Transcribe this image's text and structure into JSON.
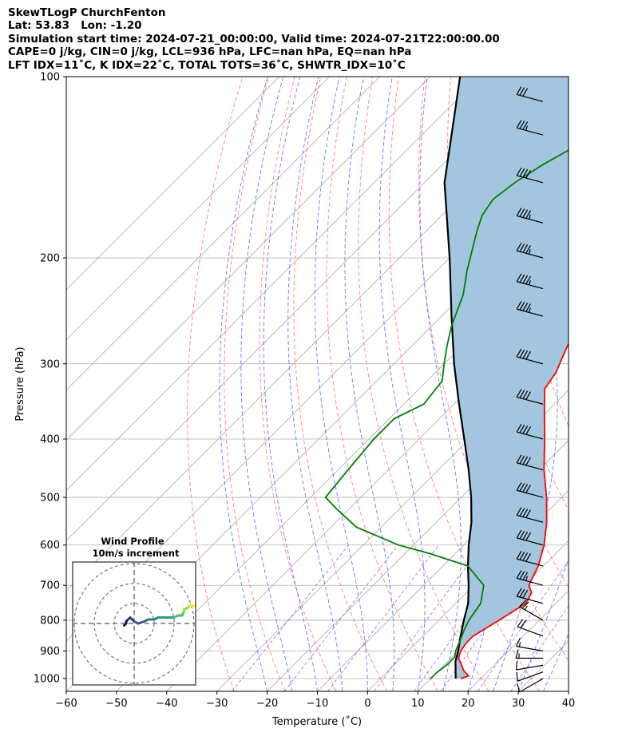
{
  "header": {
    "line1": "SkewTLogP ChurchFenton",
    "line2": "Lat: 53.83   Lon: -1.20",
    "line3": "Simulation start time: 2024-07-21_00:00:00, Valid time: 2024-07-21T22:00:00.00",
    "line4": "CAPE=0 j/kg, CIN=0 j/kg, LCL=936 hPa, LFC=nan hPa, EQ=nan hPa",
    "line5": "LFT IDX=11˚C, K IDX=22˚C, TOTAL TOTS=36˚C, SHWTR_IDX=10˚C"
  },
  "chart_data": {
    "type": "skewt-logp",
    "xlabel": "Temperature (˚C)",
    "ylabel": "Pressure (hPa)",
    "xlim": [
      -60,
      40
    ],
    "ylim": [
      1050,
      100
    ],
    "yscale": "log",
    "x_ticks": [
      "−60",
      "−50",
      "−40",
      "−30",
      "−20",
      "−10",
      "0",
      "10",
      "20",
      "30",
      "40"
    ],
    "x_tick_values": [
      -60,
      -50,
      -40,
      -30,
      -20,
      -10,
      0,
      10,
      20,
      30,
      40
    ],
    "y_ticks": [
      "100",
      "200",
      "300",
      "400",
      "500",
      "600",
      "700",
      "800",
      "900",
      "1000"
    ],
    "y_tick_values": [
      100,
      200,
      300,
      400,
      500,
      600,
      700,
      800,
      900,
      1000
    ],
    "colors": {
      "temperature": "#ff0000",
      "dewpoint": "#008000",
      "parcel": "#000000",
      "fill": "#a3c5df",
      "dry_adiabat": "#ff6b6b",
      "moist_adiabat": "#4455ff",
      "mixing_ratio": "#9944cc",
      "isotherm": "#aaaaaa",
      "grid": "#b0b0b0"
    },
    "temperature": {
      "pressure": [
        1000,
        990,
        970,
        950,
        925,
        900,
        870,
        850,
        800,
        750,
        720,
        700,
        650,
        600,
        550,
        500,
        450,
        400,
        350,
        330,
        310,
        300,
        280,
        250,
        230,
        210,
        190,
        180,
        160,
        150,
        140,
        130,
        120,
        110,
        100
      ],
      "values": [
        16,
        17,
        15,
        13.5,
        11.5,
        10.5,
        10,
        10,
        12,
        14,
        13,
        11,
        9,
        6,
        2,
        -3,
        -9,
        -15,
        -22,
        -25,
        -26,
        -27,
        -29,
        -32,
        -35,
        -38,
        -41,
        -43,
        -46,
        -48,
        -50,
        -52,
        -54,
        -56,
        -58
      ]
    },
    "dewpoint": {
      "pressure": [
        1000,
        980,
        950,
        920,
        900,
        870,
        830,
        800,
        750,
        700,
        650,
        620,
        600,
        560,
        520,
        500,
        450,
        400,
        370,
        350,
        320,
        300,
        280,
        260,
        230,
        210,
        180,
        170,
        160,
        150,
        140,
        130,
        120,
        110,
        100
      ],
      "values": [
        10,
        10,
        10.5,
        10.5,
        9.5,
        8.5,
        7,
        6,
        5,
        2,
        -5,
        -15,
        -23,
        -35,
        -43,
        -47,
        -48,
        -49,
        -49,
        -46,
        -47,
        -50,
        -53,
        -56,
        -60,
        -64,
        -70,
        -72,
        -73,
        -72,
        -70,
        -67,
        -63,
        -60,
        -57
      ]
    },
    "parcel": {
      "pressure": [
        1000,
        936,
        900,
        850,
        800,
        750,
        700,
        650,
        600,
        550,
        500,
        450,
        400,
        350,
        300,
        250,
        200,
        150,
        100
      ],
      "values": [
        15,
        11.5,
        10,
        7.5,
        5,
        2.5,
        -1,
        -5,
        -9,
        -13,
        -18,
        -24,
        -31,
        -39,
        -48,
        -58,
        -70,
        -86,
        -104
      ]
    },
    "wind_barbs": {
      "pressure": [
        1000,
        975,
        950,
        925,
        900,
        850,
        800,
        750,
        700,
        650,
        600,
        550,
        500,
        450,
        400,
        350,
        300,
        250,
        225,
        200,
        175,
        150,
        125,
        110
      ],
      "speed_kt": [
        10,
        12,
        14,
        15,
        16,
        20,
        25,
        30,
        35,
        40,
        40,
        40,
        40,
        40,
        40,
        40,
        40,
        45,
        45,
        45,
        45,
        40,
        35,
        30
      ],
      "direction_deg": [
        240,
        250,
        260,
        270,
        280,
        290,
        300,
        285,
        285,
        285,
        285,
        285,
        285,
        285,
        285,
        285,
        285,
        285,
        285,
        285,
        285,
        285,
        285,
        285
      ]
    },
    "inset": {
      "title": "Wind Profile",
      "subtitle": "10m/s increment",
      "rings": [
        10,
        20,
        30
      ],
      "hodograph_u": [
        -5,
        -4,
        -4,
        -3,
        -2,
        -1,
        0,
        2,
        5,
        7,
        10,
        12,
        15,
        18,
        20,
        22,
        24,
        25,
        25,
        27,
        28,
        29,
        30
      ],
      "hodograph_v": [
        -1,
        0,
        1,
        2,
        3,
        2,
        1,
        0,
        1,
        2,
        2,
        3,
        3,
        3,
        3,
        4,
        4,
        6,
        7,
        8,
        9,
        9,
        9
      ]
    }
  }
}
